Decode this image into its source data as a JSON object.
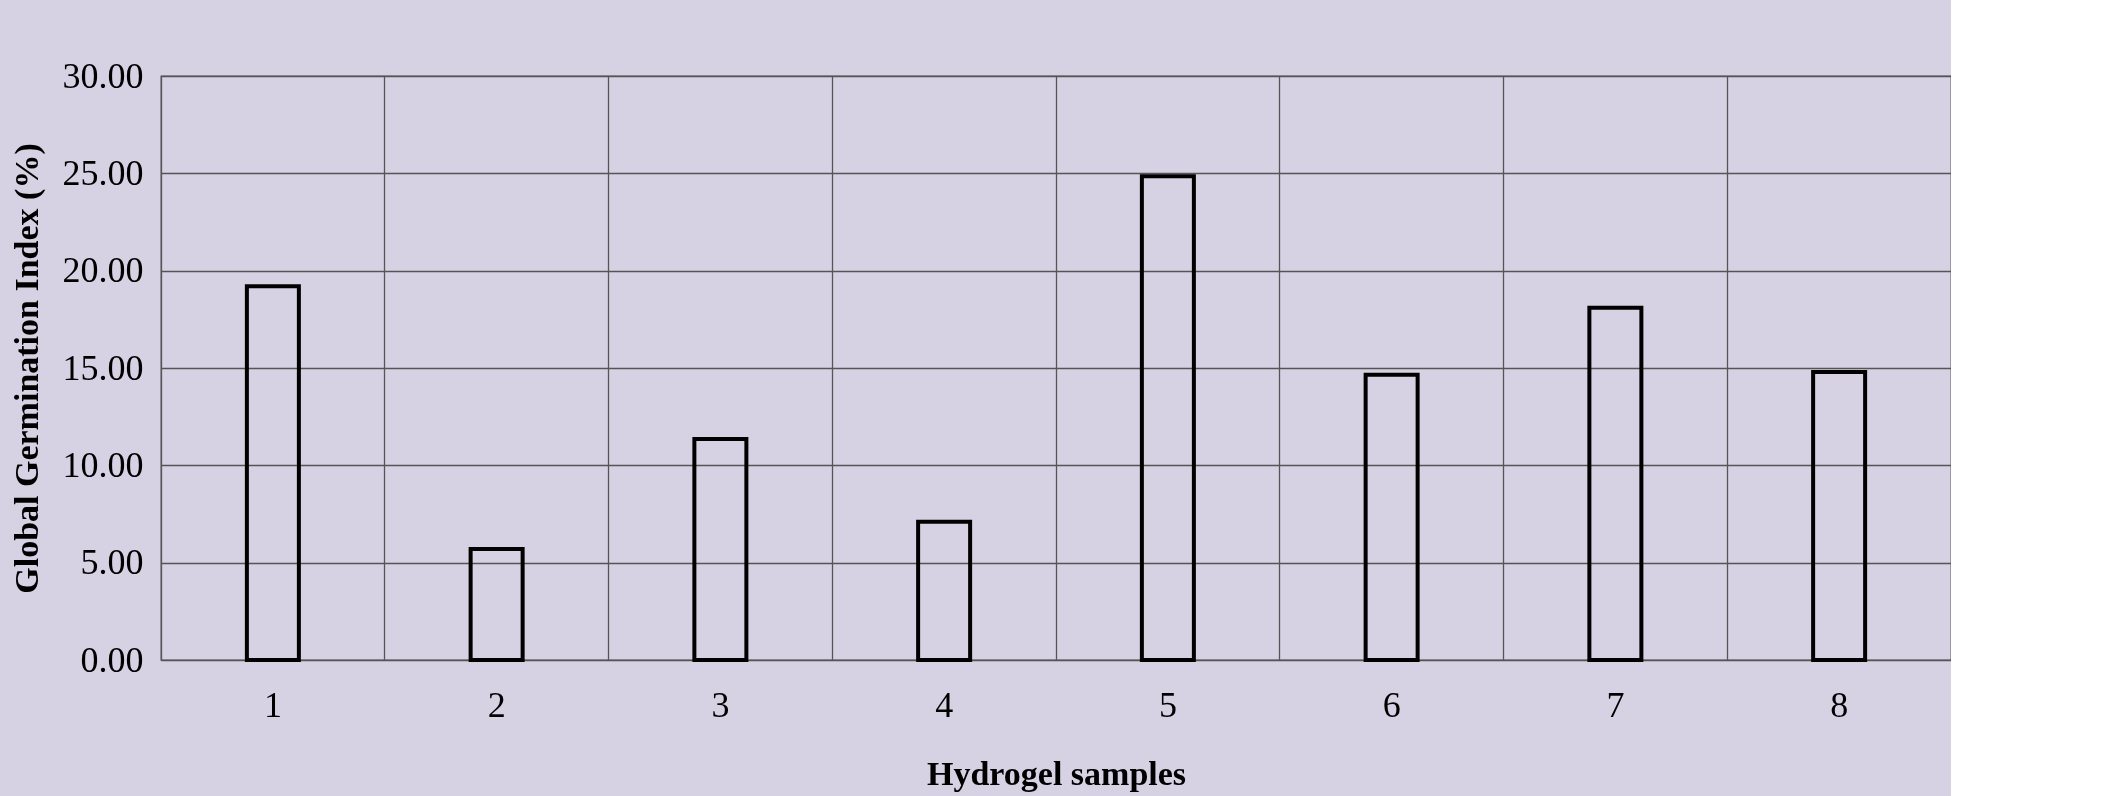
{
  "chart_data": {
    "type": "bar",
    "xlabel": "Hydrogel samples",
    "ylabel": "Global Germination Index (%)",
    "categories": [
      "1",
      "2",
      "3",
      "4",
      "5",
      "6",
      "7",
      "8"
    ],
    "values": [
      19.2,
      5.7,
      11.35,
      7.1,
      24.85,
      14.65,
      18.1,
      14.8
    ],
    "color": "#000000",
    "ylim": [
      0,
      30
    ],
    "yticks": [
      {
        "value": 0,
        "label": "0.00"
      },
      {
        "value": 5,
        "label": "5.00"
      },
      {
        "value": 10,
        "label": "10.00"
      },
      {
        "value": 15,
        "label": "15.00"
      },
      {
        "value": 20,
        "label": "20.00"
      },
      {
        "value": 25,
        "label": "25.00"
      },
      {
        "value": 30,
        "label": "30.00"
      }
    ],
    "grid": true
  }
}
